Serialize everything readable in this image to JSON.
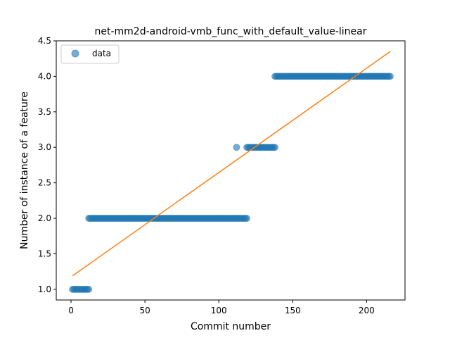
{
  "chart_data": {
    "type": "scatter",
    "title": "net-mm2d-android-vmb_func_with_default_value-linear",
    "xlabel": "Commit number",
    "ylabel": "Number of instance of a feature",
    "xlim": [
      -10,
      226
    ],
    "ylim": [
      0.85,
      4.5
    ],
    "xticks": [
      0,
      50,
      100,
      150,
      200
    ],
    "yticks": [
      1.0,
      1.5,
      2.0,
      2.5,
      3.0,
      3.5,
      4.0,
      4.5
    ],
    "ytick_labels": [
      "1.0",
      "1.5",
      "2.0",
      "2.5",
      "3.0",
      "3.5",
      "4.0",
      "4.5"
    ],
    "grid": false,
    "legend": {
      "placement": "top-left",
      "entries": [
        "data"
      ]
    },
    "colors": {
      "points": "#1f77b4",
      "fit": "#ff7f0e"
    },
    "series": [
      {
        "name": "data",
        "kind": "scatter",
        "segments": [
          {
            "x_start": 1,
            "x_end": 12,
            "y": 1.0
          },
          {
            "x_start": 12,
            "x_end": 119,
            "y": 2.0
          },
          {
            "x_start": 112,
            "x_end": 112,
            "y": 3.0
          },
          {
            "x_start": 119,
            "x_end": 138,
            "y": 3.0
          },
          {
            "x_start": 138,
            "x_end": 216,
            "y": 4.0
          }
        ]
      },
      {
        "kind": "line",
        "x": [
          1,
          216
        ],
        "y": [
          1.19,
          4.35
        ]
      }
    ]
  }
}
